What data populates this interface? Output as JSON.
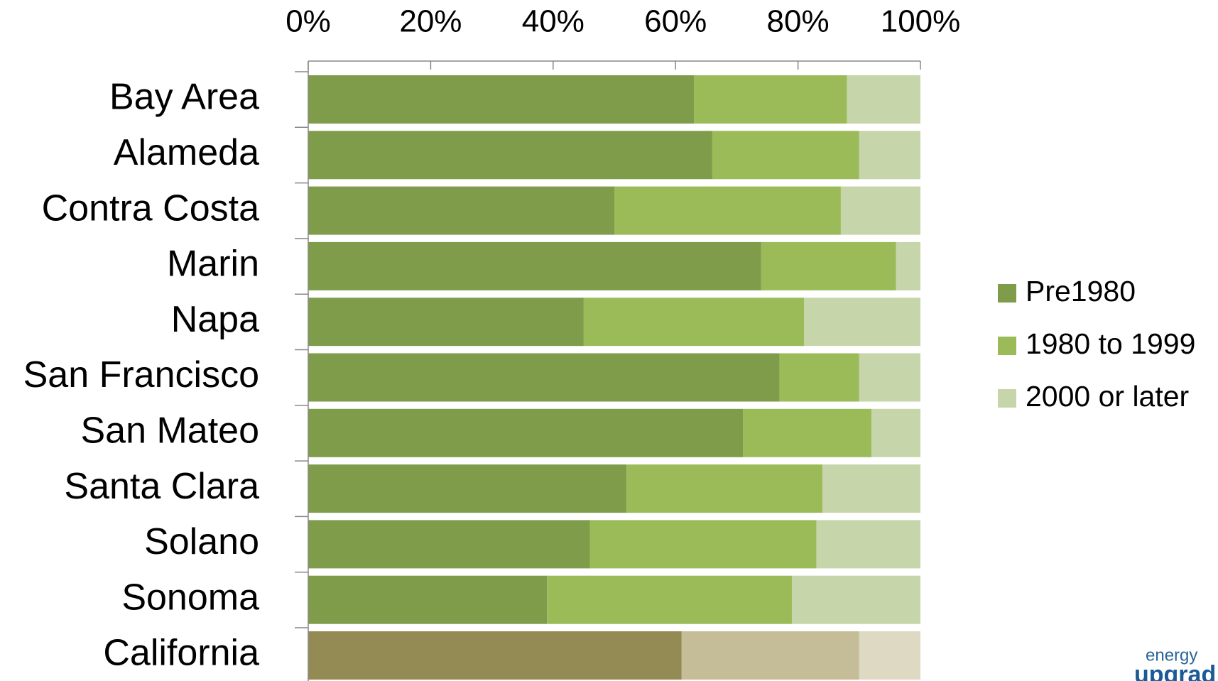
{
  "chart_data": {
    "type": "stacked-bar-horizontal",
    "categories": [
      "Bay Area",
      "Alameda",
      "Contra Costa",
      "Marin",
      "Napa",
      "San Francisco",
      "San Mateo",
      "Santa Clara",
      "Solano",
      "Sonoma",
      "California"
    ],
    "series": [
      {
        "name": "Pre1980",
        "color": "#7f9c4a",
        "values": [
          63,
          66,
          50,
          74,
          45,
          77,
          71,
          52,
          46,
          39,
          61
        ],
        "colors": [
          "#7f9c4a",
          "#7f9c4a",
          "#7f9c4a",
          "#7f9c4a",
          "#7f9c4a",
          "#7f9c4a",
          "#7f9c4a",
          "#7f9c4a",
          "#7f9c4a",
          "#7f9c4a",
          "#948a54"
        ]
      },
      {
        "name": "1980 to 1999",
        "color": "#9bbb59",
        "values": [
          25,
          24,
          37,
          22,
          36,
          13,
          21,
          32,
          37,
          40,
          29
        ],
        "colors": [
          "#9bbb59",
          "#9bbb59",
          "#9bbb59",
          "#9bbb59",
          "#9bbb59",
          "#9bbb59",
          "#9bbb59",
          "#9bbb59",
          "#9bbb59",
          "#9bbb59",
          "#c4bd97"
        ]
      },
      {
        "name": "2000 or later",
        "color": "#c6d6aa",
        "values": [
          12,
          10,
          13,
          4,
          19,
          10,
          8,
          16,
          17,
          21,
          10
        ],
        "colors": [
          "#c6d6aa",
          "#c6d6aa",
          "#c6d6aa",
          "#c6d6aa",
          "#c6d6aa",
          "#c6d6aa",
          "#c6d6aa",
          "#c6d6aa",
          "#c6d6aa",
          "#c6d6aa",
          "#ddd9c3"
        ]
      }
    ],
    "xlim": [
      0,
      100
    ],
    "xticks": [
      {
        "value": 0,
        "label": "0%"
      },
      {
        "value": 20,
        "label": "20%"
      },
      {
        "value": 40,
        "label": "40%"
      },
      {
        "value": 60,
        "label": "60%"
      },
      {
        "value": 80,
        "label": "80%"
      },
      {
        "value": 100,
        "label": "100%"
      }
    ],
    "legend": "right",
    "logo": [
      "energy",
      "upgrad"
    ]
  }
}
